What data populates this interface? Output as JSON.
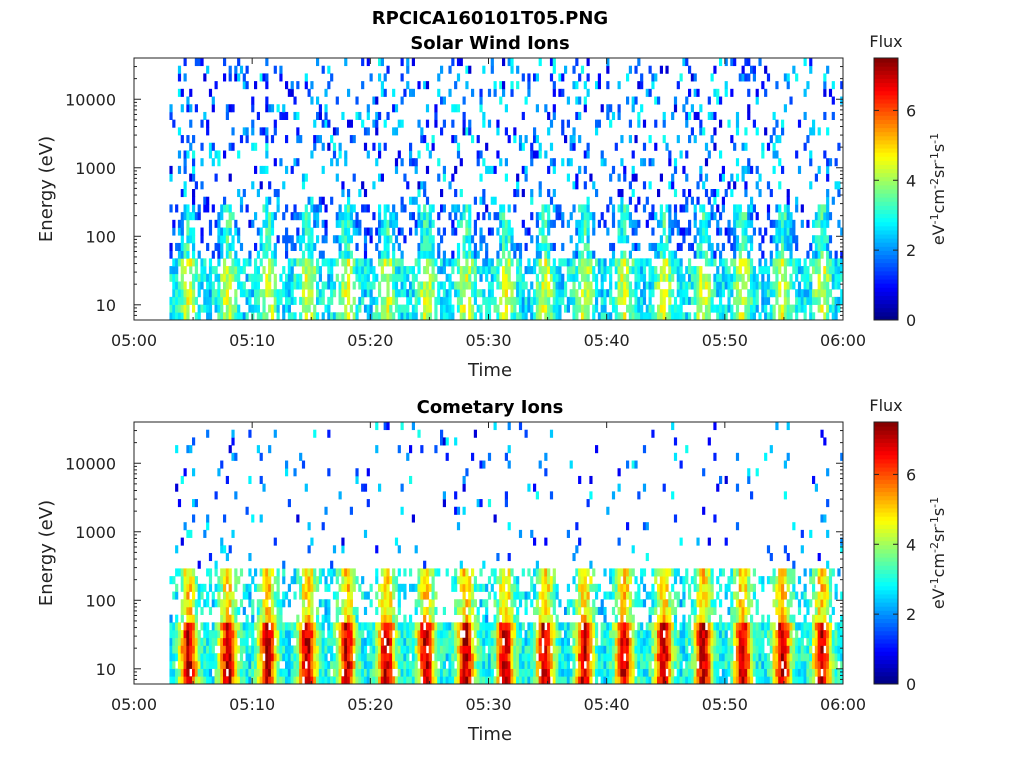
{
  "figure": {
    "filename": "RPCICA160101T05.PNG"
  },
  "chart_data": [
    {
      "type": "heatmap",
      "title": "Solar Wind Ions",
      "xlabel": "Time",
      "ylabel": "Energy (eV)",
      "x_ticks": [
        "05:00",
        "05:10",
        "05:20",
        "05:30",
        "05:40",
        "05:50",
        "06:00"
      ],
      "x_range": [
        "05:00",
        "06:00"
      ],
      "y_scale": "log",
      "y_ticks": [
        "10",
        "100",
        "1000",
        "10000"
      ],
      "y_range": [
        6,
        40000
      ],
      "colorbar": {
        "title": "Flux",
        "label": "eV-1cm-2sr-1s-1",
        "ticks": [
          "0",
          "2",
          "4",
          "6"
        ],
        "range": [
          0,
          7.5
        ],
        "colormap": "jet"
      },
      "data_start": "05:03",
      "data_end": "06:00",
      "peak_level_low_energy": 4.5,
      "description_intensity": "low"
    },
    {
      "type": "heatmap",
      "title": "Cometary Ions",
      "xlabel": "Time",
      "ylabel": "Energy (eV)",
      "x_ticks": [
        "05:00",
        "05:10",
        "05:20",
        "05:30",
        "05:40",
        "05:50",
        "06:00"
      ],
      "x_range": [
        "05:00",
        "06:00"
      ],
      "y_scale": "log",
      "y_ticks": [
        "10",
        "100",
        "1000",
        "10000"
      ],
      "y_range": [
        6,
        40000
      ],
      "colorbar": {
        "title": "Flux",
        "label": "eV-1cm-2sr-1s-1",
        "ticks": [
          "0",
          "2",
          "4",
          "6"
        ],
        "range": [
          0,
          7.5
        ],
        "colormap": "jet"
      },
      "data_start": "05:03",
      "data_end": "06:00",
      "peak_level_low_energy": 7,
      "description_intensity": "high"
    }
  ]
}
